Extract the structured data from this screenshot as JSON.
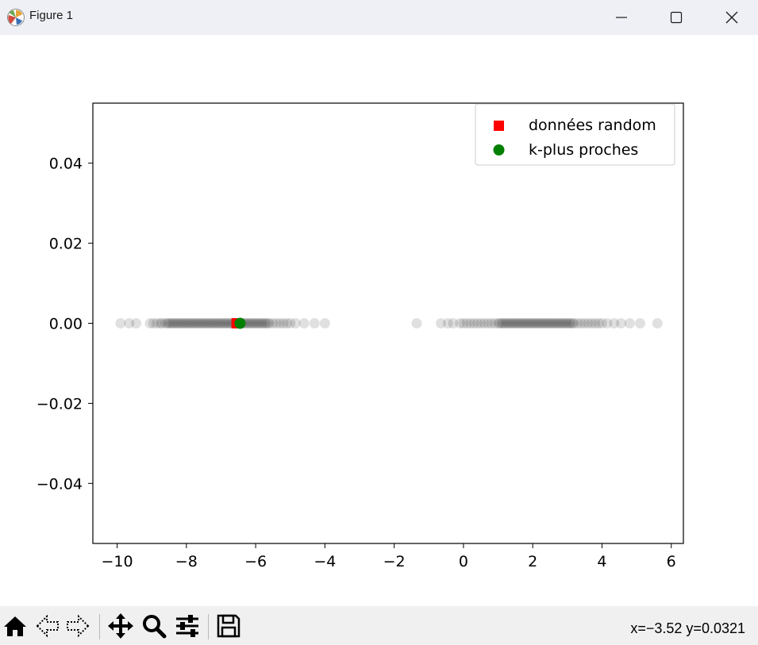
{
  "window": {
    "title": "Figure 1",
    "icon": "matplotlib-icon",
    "controls": [
      "minimize-icon",
      "maximize-icon",
      "close-icon"
    ]
  },
  "toolbar": {
    "buttons": [
      "home-icon",
      "back-icon",
      "forward-icon",
      "pan-icon",
      "zoom-icon",
      "configure-subplots-icon",
      "save-icon"
    ],
    "coords_text": "x=−3.52 y=0.0321"
  },
  "chart_data": {
    "type": "scatter",
    "title": "",
    "xlabel": "",
    "ylabel": "",
    "xlim": [
      -10.7,
      6.35
    ],
    "ylim": [
      -0.055,
      0.055
    ],
    "x_ticks": [
      -10,
      -8,
      -6,
      -4,
      -2,
      0,
      2,
      4,
      6
    ],
    "x_tick_labels": [
      "−10",
      "−8",
      "−6",
      "−4",
      "−2",
      "0",
      "2",
      "4",
      "6"
    ],
    "y_ticks": [
      0.04,
      0.02,
      0.0,
      -0.02,
      -0.04
    ],
    "y_tick_labels": [
      "0.04",
      "0.02",
      "0.00",
      "−0.02",
      "−0.04"
    ],
    "grid": false,
    "legend_position": "upper right",
    "background_points": {
      "color": "#000000",
      "alpha": 0.12,
      "y": 0,
      "x": [
        -9.9,
        -9.65,
        -9.45,
        -9.05,
        -8.95,
        -8.85,
        -8.75,
        -8.7,
        -8.6,
        -8.55,
        -8.5,
        -8.45,
        -8.4,
        -8.35,
        -8.3,
        -8.25,
        -8.2,
        -8.15,
        -8.1,
        -8.05,
        -8.0,
        -7.95,
        -7.9,
        -7.85,
        -7.8,
        -7.75,
        -7.7,
        -7.65,
        -7.6,
        -7.55,
        -7.5,
        -7.45,
        -7.4,
        -7.35,
        -7.3,
        -7.25,
        -7.2,
        -7.15,
        -7.1,
        -7.05,
        -7.0,
        -6.95,
        -6.9,
        -6.85,
        -6.8,
        -6.75,
        -6.7,
        -6.65,
        -6.6,
        -6.55,
        -6.5,
        -6.45,
        -6.4,
        -6.35,
        -6.3,
        -6.25,
        -6.2,
        -6.15,
        -6.1,
        -6.05,
        -6.0,
        -5.95,
        -5.9,
        -5.85,
        -5.8,
        -5.75,
        -5.7,
        -5.65,
        -5.6,
        -5.5,
        -5.4,
        -5.3,
        -5.2,
        -5.1,
        -5.0,
        -4.85,
        -4.6,
        -4.3,
        -4.0,
        -1.35,
        -0.65,
        -0.45,
        -0.3,
        -0.1,
        0.0,
        0.1,
        0.2,
        0.3,
        0.4,
        0.5,
        0.6,
        0.7,
        0.8,
        0.9,
        1.0,
        1.05,
        1.1,
        1.15,
        1.2,
        1.25,
        1.3,
        1.35,
        1.4,
        1.45,
        1.5,
        1.55,
        1.6,
        1.65,
        1.7,
        1.75,
        1.8,
        1.85,
        1.9,
        1.95,
        2.0,
        2.05,
        2.1,
        2.15,
        2.2,
        2.25,
        2.3,
        2.35,
        2.4,
        2.45,
        2.5,
        2.55,
        2.6,
        2.65,
        2.7,
        2.75,
        2.8,
        2.85,
        2.9,
        2.95,
        3.0,
        3.05,
        3.1,
        3.15,
        3.2,
        3.3,
        3.4,
        3.5,
        3.6,
        3.7,
        3.8,
        3.9,
        4.0,
        4.15,
        4.35,
        4.55,
        4.8,
        5.1,
        5.6
      ]
    },
    "series": [
      {
        "name": "données random",
        "marker": "square",
        "color": "#ff0000",
        "points": [
          [
            -6.55,
            0.0
          ]
        ]
      },
      {
        "name": "k-plus proches",
        "marker": "circle",
        "color": "#008000",
        "points": [
          [
            -6.45,
            0.0
          ]
        ]
      }
    ]
  }
}
